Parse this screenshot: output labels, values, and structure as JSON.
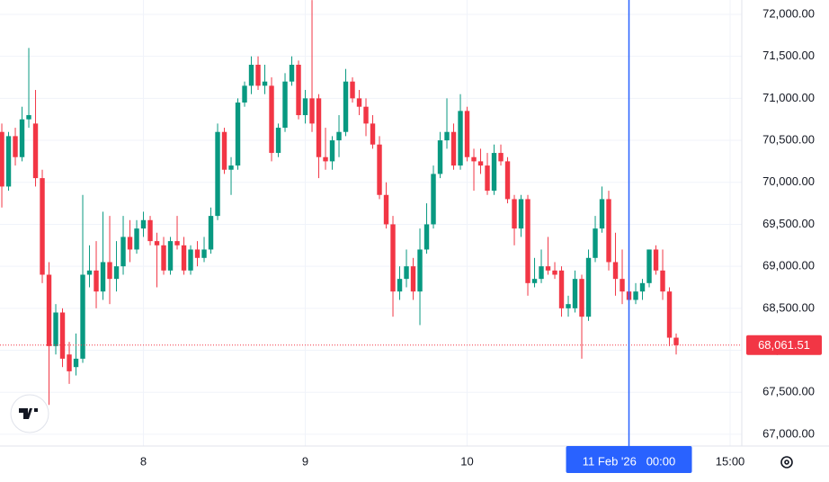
{
  "chart_data": {
    "type": "candlestick",
    "up_color": "#089981",
    "down_color": "#f23645",
    "open": [
      70600,
      69950,
      70550,
      70300,
      70750,
      70700,
      70050,
      68900,
      68050,
      68450,
      67950,
      67800,
      67900,
      68900,
      68950,
      68700,
      69050,
      68850,
      69000,
      69350,
      69200,
      69450,
      69550,
      69300,
      69250,
      68950,
      69300,
      69250,
      68950,
      69200,
      69100,
      69200,
      69600,
      70600,
      70150,
      70200,
      70950,
      71150,
      71400,
      71150,
      71150,
      70350,
      70650,
      71200,
      71400,
      70800,
      71000,
      71000,
      70300,
      70250,
      70500,
      70600,
      71200,
      71000,
      70900,
      70700,
      70450,
      69850,
      69500,
      68700,
      68850,
      69000,
      68700,
      69200,
      69500,
      70100,
      70500,
      70600,
      70200,
      70850,
      70300,
      70250,
      70200,
      69900,
      70350,
      70250,
      69800,
      69450,
      69800,
      68800,
      68850,
      69000,
      68950,
      68950,
      68500,
      68500,
      68850,
      68400,
      69100,
      69450,
      69800,
      69050,
      68850,
      68700,
      68600,
      68700,
      68800,
      69200,
      68950,
      68700,
      68150
    ],
    "high": [
      70700,
      70600,
      70650,
      70900,
      71600,
      71100,
      70150,
      69050,
      68550,
      68500,
      68100,
      68200,
      69850,
      69250,
      69300,
      69650,
      69600,
      69300,
      69600,
      69550,
      69550,
      69650,
      69600,
      69400,
      69350,
      69350,
      69600,
      69350,
      69250,
      69300,
      69350,
      69700,
      70700,
      70650,
      70300,
      71000,
      71200,
      71500,
      71500,
      71400,
      71250,
      70700,
      71300,
      71500,
      71450,
      71100,
      72170,
      71050,
      70650,
      70550,
      70800,
      71350,
      71250,
      71100,
      71000,
      70800,
      70550,
      70000,
      69600,
      69000,
      69200,
      69100,
      69450,
      69750,
      70200,
      70600,
      71000,
      70700,
      71050,
      70900,
      70400,
      70400,
      70350,
      70450,
      70450,
      70300,
      69850,
      69850,
      69850,
      69100,
      69200,
      69350,
      69050,
      69000,
      68650,
      68950,
      68900,
      69200,
      69600,
      69950,
      69900,
      69400,
      69200,
      68900,
      68800,
      68850,
      69200,
      69250,
      69200,
      68750,
      68200
    ],
    "low": [
      69700,
      69900,
      70200,
      70250,
      70650,
      69950,
      68800,
      67350,
      67950,
      67800,
      67600,
      67700,
      67850,
      68750,
      68500,
      68600,
      68550,
      68700,
      68900,
      69050,
      69150,
      69350,
      69250,
      68750,
      68900,
      68900,
      69200,
      68900,
      68900,
      69000,
      69050,
      69150,
      69550,
      70100,
      69850,
      70150,
      70900,
      71050,
      71100,
      71050,
      70250,
      70300,
      70600,
      71150,
      70750,
      70700,
      70600,
      70050,
      70150,
      70150,
      70300,
      70550,
      70950,
      70800,
      70550,
      70400,
      69800,
      69450,
      68400,
      68600,
      68750,
      68600,
      68300,
      69150,
      69450,
      70050,
      70400,
      70150,
      70150,
      70250,
      69900,
      70100,
      69850,
      69850,
      70200,
      69750,
      69250,
      69350,
      68650,
      68750,
      68800,
      68900,
      68850,
      68400,
      68400,
      68450,
      67900,
      68350,
      69050,
      69400,
      68950,
      68650,
      68550,
      68300,
      68550,
      68600,
      68750,
      68900,
      68600,
      68050,
      67950
    ],
    "close": [
      69950,
      70550,
      70300,
      70750,
      70800,
      70050,
      68900,
      68050,
      68450,
      67900,
      67750,
      67900,
      68900,
      68950,
      68700,
      69050,
      68850,
      69000,
      69350,
      69200,
      69450,
      69550,
      69300,
      69250,
      68950,
      69300,
      69250,
      68950,
      69200,
      69100,
      69200,
      69600,
      70600,
      70150,
      70200,
      70950,
      71150,
      71400,
      71150,
      71200,
      70350,
      70650,
      71200,
      71400,
      70800,
      71000,
      70700,
      70300,
      70250,
      70500,
      70600,
      71200,
      71000,
      70900,
      70700,
      70450,
      69850,
      69500,
      68700,
      68850,
      69000,
      68700,
      69200,
      69500,
      70100,
      70500,
      70600,
      70200,
      70850,
      70300,
      70250,
      70200,
      69900,
      70350,
      70250,
      69800,
      69450,
      69800,
      68800,
      68850,
      69000,
      68950,
      68900,
      68500,
      68550,
      68850,
      68400,
      69100,
      69450,
      69800,
      69050,
      68850,
      68700,
      68600,
      68700,
      68800,
      69200,
      68950,
      68700,
      68150,
      68061.51
    ],
    "xlim": [
      -0.27,
      109.73
    ],
    "xticks": [
      {
        "value": 21,
        "label": "8"
      },
      {
        "value": 45,
        "label": "9"
      },
      {
        "value": 69,
        "label": "10"
      },
      {
        "value": 108,
        "label": "15:00"
      }
    ],
    "crosshair": {
      "value": 93,
      "label": "11 Feb '26   00:00"
    },
    "ylim": [
      66860,
      72171
    ],
    "yticks": [
      {
        "value": 67000,
        "label": "67,000.00"
      },
      {
        "value": 67500,
        "label": "67,500.00"
      },
      {
        "value": 68000,
        "label": "68,000.00"
      },
      {
        "value": 68500,
        "label": "68,500.00"
      },
      {
        "value": 69000,
        "label": "69,000.00"
      },
      {
        "value": 69500,
        "label": "69,500.00"
      },
      {
        "value": 70000,
        "label": "70,000.00"
      },
      {
        "value": 70500,
        "label": "70,500.00"
      },
      {
        "value": 71000,
        "label": "71,000.00"
      },
      {
        "value": 71500,
        "label": "71,500.00"
      },
      {
        "value": 72000,
        "label": "72,000.00"
      }
    ],
    "last_price": {
      "value": 68061.51,
      "label": "68,061.51"
    },
    "grid": true
  }
}
